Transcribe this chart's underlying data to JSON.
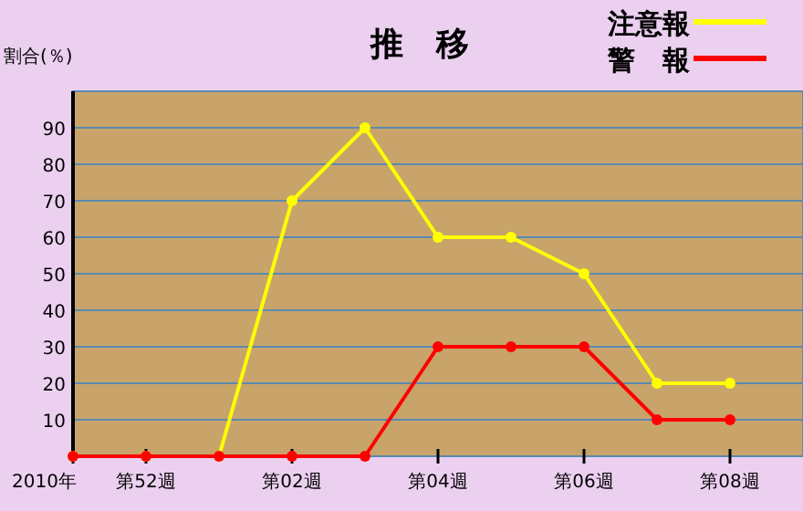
{
  "chart_data": {
    "type": "line",
    "title": "推　移",
    "ylabel": "割合(％)",
    "categories": [
      "2010年",
      "第52週",
      null,
      "第02週",
      null,
      "第04週",
      null,
      "第06週",
      null,
      "第08週"
    ],
    "series": [
      {
        "name": "注意報",
        "color": "#ffff00",
        "values": [
          0,
          0,
          0,
          70,
          90,
          60,
          60,
          50,
          20,
          20
        ]
      },
      {
        "name": "警　報",
        "color": "#ff0000",
        "values": [
          0,
          0,
          0,
          0,
          0,
          30,
          30,
          30,
          10,
          10
        ]
      }
    ],
    "ylim": [
      0,
      100
    ],
    "yticks": [
      10,
      20,
      30,
      40,
      50,
      60,
      70,
      80,
      90
    ],
    "grid": "y",
    "legend": "top right",
    "marker": "circle"
  }
}
